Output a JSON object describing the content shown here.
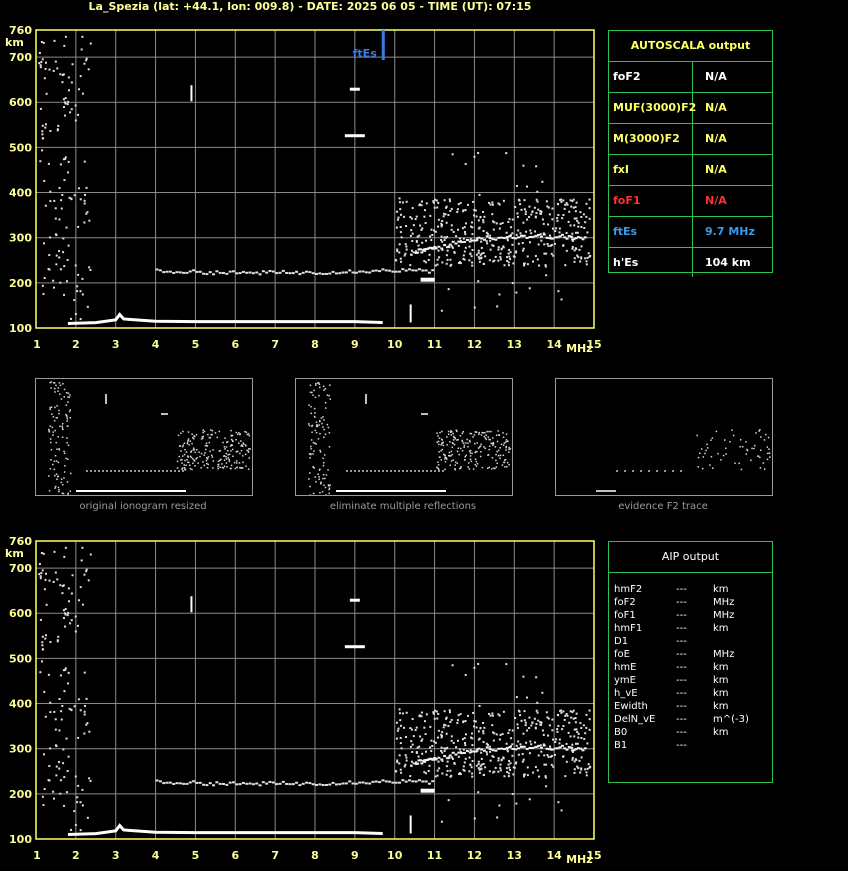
{
  "title": "La_Spezia (lat: +44.1, lon: 009.8) - DATE: 2025 06 05 - TIME (UT): 07:15",
  "colors": {
    "grid": "#8a8a8a",
    "axis": "#ffff66",
    "labels": "#ffff99",
    "border": "#2fbf4a",
    "es": "#3a7de0",
    "red": "#ff3030",
    "yellow": "#ffff66",
    "dots": "#e0e0e0"
  },
  "axis": {
    "y_unit": "km",
    "x_unit": "MHz",
    "y_ticks": [
      "100",
      "200",
      "300",
      "400",
      "500",
      "600",
      "700",
      "760"
    ],
    "x_ticks": [
      "1",
      "2",
      "3",
      "4",
      "5",
      "6",
      "7",
      "8",
      "9",
      "10",
      "11",
      "12",
      "13",
      "14",
      "15"
    ]
  },
  "es_marker": {
    "label": "ftEs",
    "freq": 9.7
  },
  "autoscala": {
    "header": "AUTOSCALA output",
    "rows": [
      {
        "key": "foF2",
        "value": "N/A",
        "kcolor": "#ffffff",
        "vcolor": "#ffffff"
      },
      {
        "key": "MUF(3000)F2",
        "value": "N/A",
        "kcolor": "#ffff66",
        "vcolor": "#ffff66"
      },
      {
        "key": "M(3000)F2",
        "value": "N/A",
        "kcolor": "#ffff66",
        "vcolor": "#ffff66"
      },
      {
        "key": "fxI",
        "value": "N/A",
        "kcolor": "#ffff66",
        "vcolor": "#ffff66"
      },
      {
        "key": "foF1",
        "value": "N/A",
        "kcolor": "#ff3030",
        "vcolor": "#ff3030"
      },
      {
        "key": "ftEs",
        "value": "9.7 MHz",
        "kcolor": "#3a9af0",
        "vcolor": "#3a9af0"
      },
      {
        "key": "h'Es",
        "value": "104     km",
        "kcolor": "#ffffff",
        "vcolor": "#ffffff"
      }
    ]
  },
  "thumbnails": [
    {
      "caption": "original ionogram resized"
    },
    {
      "caption": "eliminate multiple reflections"
    },
    {
      "caption": "evidence F2 trace"
    }
  ],
  "aip": {
    "header": "AIP output",
    "rows": [
      {
        "k": "hmF2",
        "d": "---",
        "u": "km"
      },
      {
        "k": "foF2",
        "d": "---",
        "u": "MHz"
      },
      {
        "k": "foF1",
        "d": "---",
        "u": "MHz"
      },
      {
        "k": "hmF1",
        "d": "---",
        "u": "km"
      },
      {
        "k": "D1",
        "d": "---",
        "u": ""
      },
      {
        "k": "foE",
        "d": "---",
        "u": "MHz"
      },
      {
        "k": "hmE",
        "d": "---",
        "u": "km"
      },
      {
        "k": "ymE",
        "d": "---",
        "u": "km"
      },
      {
        "k": "h_vE",
        "d": "---",
        "u": "km"
      },
      {
        "k": "Ewidth",
        "d": "---",
        "u": "km"
      },
      {
        "k": "DelN_vE",
        "d": "---",
        "u": "m^(-3)"
      },
      {
        "k": "B0",
        "d": "---",
        "u": "km"
      },
      {
        "k": "B1",
        "d": "---",
        "u": ""
      }
    ]
  },
  "chart_data": {
    "type": "scatter",
    "title": "",
    "xlabel": "MHz",
    "ylabel": "km",
    "xlim": [
      1,
      15
    ],
    "ylim": [
      100,
      760
    ],
    "grid": true,
    "series": [
      {
        "values": [
          [
            1.8,
            110
          ],
          [
            2.5,
            112
          ],
          [
            3.0,
            118
          ],
          [
            3.1,
            130
          ],
          [
            3.2,
            120
          ],
          [
            4.0,
            115
          ],
          [
            5.0,
            114
          ],
          [
            6.0,
            114
          ],
          [
            7.0,
            114
          ],
          [
            8.0,
            114
          ],
          [
            9.0,
            114
          ],
          [
            9.7,
            112
          ]
        ]
      },
      {
        "values": [
          [
            4.0,
            228
          ],
          [
            5.0,
            226
          ],
          [
            6.0,
            224
          ],
          [
            7.0,
            225
          ],
          [
            8.0,
            225
          ],
          [
            9.0,
            228
          ],
          [
            10.0,
            230
          ],
          [
            11.0,
            228
          ]
        ]
      },
      {
        "values": [
          [
            10.5,
            270
          ],
          [
            11.0,
            280
          ],
          [
            12.0,
            300
          ],
          [
            13.0,
            305
          ],
          [
            14.0,
            305
          ],
          [
            14.8,
            300
          ]
        ]
      },
      {
        "values": [
          [
            10.8,
            207
          ],
          [
            4.9,
            620
          ],
          [
            9.0,
            630
          ],
          [
            9.0,
            527
          ],
          [
            10.4,
            130
          ]
        ]
      }
    ]
  }
}
